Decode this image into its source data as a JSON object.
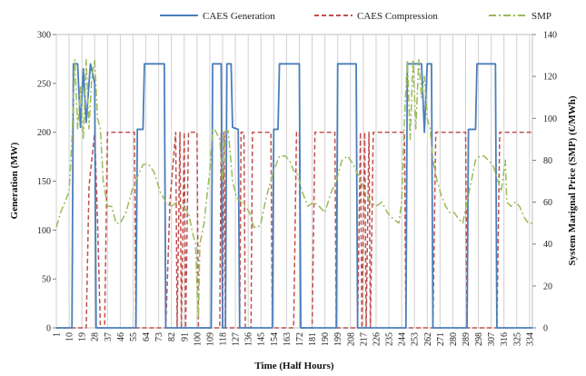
{
  "chart_data": {
    "type": "line",
    "xlabel": "Time (Half Hours)",
    "ylabel_left": "Generation (MW)",
    "ylabel_right": "System Marignal Price (SMP) (€/MWh)",
    "ylim_left": [
      0,
      300
    ],
    "ylim_right": [
      0,
      140
    ],
    "yticks_left": [
      0,
      50,
      100,
      150,
      200,
      250,
      300
    ],
    "yticks_right": [
      0,
      20,
      40,
      60,
      80,
      100,
      120,
      140
    ],
    "xlim": [
      1,
      336
    ],
    "x_tick_labels": [
      "1",
      "10",
      "19",
      "28",
      "37",
      "46",
      "55",
      "64",
      "73",
      "82",
      "91",
      "100",
      "109",
      "118",
      "127",
      "136",
      "145",
      "154",
      "163",
      "172",
      "181",
      "190",
      "199",
      "208",
      "217",
      "226",
      "235",
      "244",
      "253",
      "262",
      "271",
      "280",
      "289",
      "298",
      "307",
      "316",
      "325",
      "334"
    ],
    "grid": "vertical lines at every labeled x tick",
    "legend_position": "top",
    "series": [
      {
        "name": "CAES Generation",
        "axis": "left",
        "color": "#4a7ebb",
        "style": "solid",
        "points": [
          [
            1,
            0
          ],
          [
            12,
            0
          ],
          [
            13,
            270
          ],
          [
            16,
            270
          ],
          [
            18,
            205
          ],
          [
            20,
            265
          ],
          [
            22,
            210
          ],
          [
            25,
            270
          ],
          [
            28,
            250
          ],
          [
            29,
            0
          ],
          [
            57,
            0
          ],
          [
            58,
            203
          ],
          [
            62,
            203
          ],
          [
            63,
            270
          ],
          [
            77,
            270
          ],
          [
            78,
            0
          ],
          [
            110,
            0
          ],
          [
            111,
            270
          ],
          [
            117,
            270
          ],
          [
            118,
            0
          ],
          [
            120,
            0
          ],
          [
            121,
            270
          ],
          [
            124,
            270
          ],
          [
            125,
            205
          ],
          [
            129,
            203
          ],
          [
            130,
            0
          ],
          [
            153,
            0
          ],
          [
            154,
            203
          ],
          [
            157,
            203
          ],
          [
            158,
            270
          ],
          [
            172,
            270
          ],
          [
            173,
            0
          ],
          [
            198,
            0
          ],
          [
            199,
            270
          ],
          [
            212,
            270
          ],
          [
            213,
            0
          ],
          [
            247,
            0
          ],
          [
            248,
            270
          ],
          [
            258,
            270
          ],
          [
            260,
            200
          ],
          [
            262,
            270
          ],
          [
            265,
            270
          ],
          [
            266,
            0
          ],
          [
            290,
            0
          ],
          [
            291,
            203
          ],
          [
            296,
            203
          ],
          [
            297,
            270
          ],
          [
            310,
            270
          ],
          [
            311,
            0
          ],
          [
            336,
            0
          ]
        ]
      },
      {
        "name": "CAES Compression",
        "axis": "left",
        "color": "#c0504d",
        "style": "dashed",
        "points": [
          [
            1,
            0
          ],
          [
            22,
            0
          ],
          [
            24,
            145
          ],
          [
            28,
            200
          ],
          [
            30,
            110
          ],
          [
            32,
            0
          ],
          [
            35,
            0
          ],
          [
            37,
            200
          ],
          [
            56,
            200
          ],
          [
            57,
            0
          ],
          [
            78,
            0
          ],
          [
            81,
            130
          ],
          [
            85,
            200
          ],
          [
            86,
            0
          ],
          [
            88,
            200
          ],
          [
            89,
            0
          ],
          [
            91,
            200
          ],
          [
            92,
            0
          ],
          [
            94,
            200
          ],
          [
            100,
            200
          ],
          [
            101,
            0
          ],
          [
            116,
            0
          ],
          [
            117,
            200
          ],
          [
            118,
            0
          ],
          [
            119,
            200
          ],
          [
            120,
            0
          ],
          [
            130,
            0
          ],
          [
            131,
            200
          ],
          [
            133,
            200
          ],
          [
            134,
            0
          ],
          [
            138,
            0
          ],
          [
            139,
            200
          ],
          [
            152,
            200
          ],
          [
            153,
            0
          ],
          [
            168,
            0
          ],
          [
            170,
            200
          ],
          [
            172,
            200
          ],
          [
            173,
            0
          ],
          [
            181,
            0
          ],
          [
            183,
            200
          ],
          [
            197,
            200
          ],
          [
            198,
            0
          ],
          [
            213,
            0
          ],
          [
            215,
            200
          ],
          [
            216,
            0
          ],
          [
            218,
            200
          ],
          [
            219,
            0
          ],
          [
            221,
            200
          ],
          [
            222,
            0
          ],
          [
            224,
            200
          ],
          [
            246,
            200
          ],
          [
            247,
            0
          ],
          [
            266,
            0
          ],
          [
            268,
            200
          ],
          [
            289,
            200
          ],
          [
            290,
            0
          ],
          [
            311,
            0
          ],
          [
            313,
            200
          ],
          [
            336,
            200
          ]
        ]
      },
      {
        "name": "SMP",
        "axis": "right",
        "color": "#9bbb59",
        "style": "dash-dot",
        "points": [
          [
            1,
            48
          ],
          [
            4,
            55
          ],
          [
            7,
            60
          ],
          [
            10,
            65
          ],
          [
            12,
            90
          ],
          [
            14,
            128
          ],
          [
            16,
            95
          ],
          [
            18,
            115
          ],
          [
            20,
            90
          ],
          [
            22,
            128
          ],
          [
            24,
            95
          ],
          [
            26,
            120
          ],
          [
            28,
            128
          ],
          [
            30,
            100
          ],
          [
            32,
            95
          ],
          [
            34,
            70
          ],
          [
            37,
            58
          ],
          [
            40,
            58
          ],
          [
            43,
            50
          ],
          [
            46,
            50
          ],
          [
            50,
            55
          ],
          [
            54,
            65
          ],
          [
            58,
            72
          ],
          [
            62,
            78
          ],
          [
            66,
            78
          ],
          [
            70,
            74
          ],
          [
            74,
            65
          ],
          [
            78,
            60
          ],
          [
            82,
            58
          ],
          [
            86,
            60
          ],
          [
            90,
            58
          ],
          [
            94,
            55
          ],
          [
            97,
            45
          ],
          [
            99,
            40
          ],
          [
            100,
            20
          ],
          [
            101,
            5
          ],
          [
            102,
            40
          ],
          [
            105,
            50
          ],
          [
            107,
            63
          ],
          [
            109,
            75
          ],
          [
            111,
            95
          ],
          [
            113,
            94
          ],
          [
            116,
            90
          ],
          [
            118,
            70
          ],
          [
            120,
            94
          ],
          [
            122,
            94
          ],
          [
            125,
            70
          ],
          [
            128,
            62
          ],
          [
            131,
            60
          ],
          [
            134,
            58
          ],
          [
            137,
            55
          ],
          [
            140,
            48
          ],
          [
            143,
            48
          ],
          [
            145,
            50
          ],
          [
            148,
            60
          ],
          [
            151,
            68
          ],
          [
            154,
            75
          ],
          [
            158,
            82
          ],
          [
            162,
            82
          ],
          [
            165,
            80
          ],
          [
            168,
            75
          ],
          [
            171,
            73
          ],
          [
            174,
            65
          ],
          [
            178,
            58
          ],
          [
            182,
            60
          ],
          [
            186,
            58
          ],
          [
            190,
            55
          ],
          [
            194,
            64
          ],
          [
            198,
            70
          ],
          [
            202,
            80
          ],
          [
            206,
            82
          ],
          [
            210,
            78
          ],
          [
            214,
            72
          ],
          [
            218,
            65
          ],
          [
            222,
            60
          ],
          [
            226,
            58
          ],
          [
            230,
            60
          ],
          [
            234,
            55
          ],
          [
            238,
            52
          ],
          [
            242,
            50
          ],
          [
            244,
            60
          ],
          [
            246,
            100
          ],
          [
            248,
            128
          ],
          [
            250,
            90
          ],
          [
            252,
            128
          ],
          [
            254,
            95
          ],
          [
            256,
            128
          ],
          [
            258,
            110
          ],
          [
            260,
            120
          ],
          [
            262,
            100
          ],
          [
            264,
            95
          ],
          [
            266,
            80
          ],
          [
            269,
            70
          ],
          [
            272,
            63
          ],
          [
            275,
            58
          ],
          [
            278,
            55
          ],
          [
            281,
            55
          ],
          [
            284,
            52
          ],
          [
            287,
            50
          ],
          [
            290,
            60
          ],
          [
            293,
            70
          ],
          [
            296,
            80
          ],
          [
            299,
            82
          ],
          [
            302,
            82
          ],
          [
            305,
            80
          ],
          [
            308,
            78
          ],
          [
            311,
            72
          ],
          [
            314,
            65
          ],
          [
            317,
            80
          ],
          [
            318,
            60
          ],
          [
            321,
            58
          ],
          [
            324,
            60
          ],
          [
            327,
            58
          ],
          [
            330,
            53
          ],
          [
            333,
            50
          ],
          [
            336,
            50
          ]
        ]
      }
    ]
  }
}
